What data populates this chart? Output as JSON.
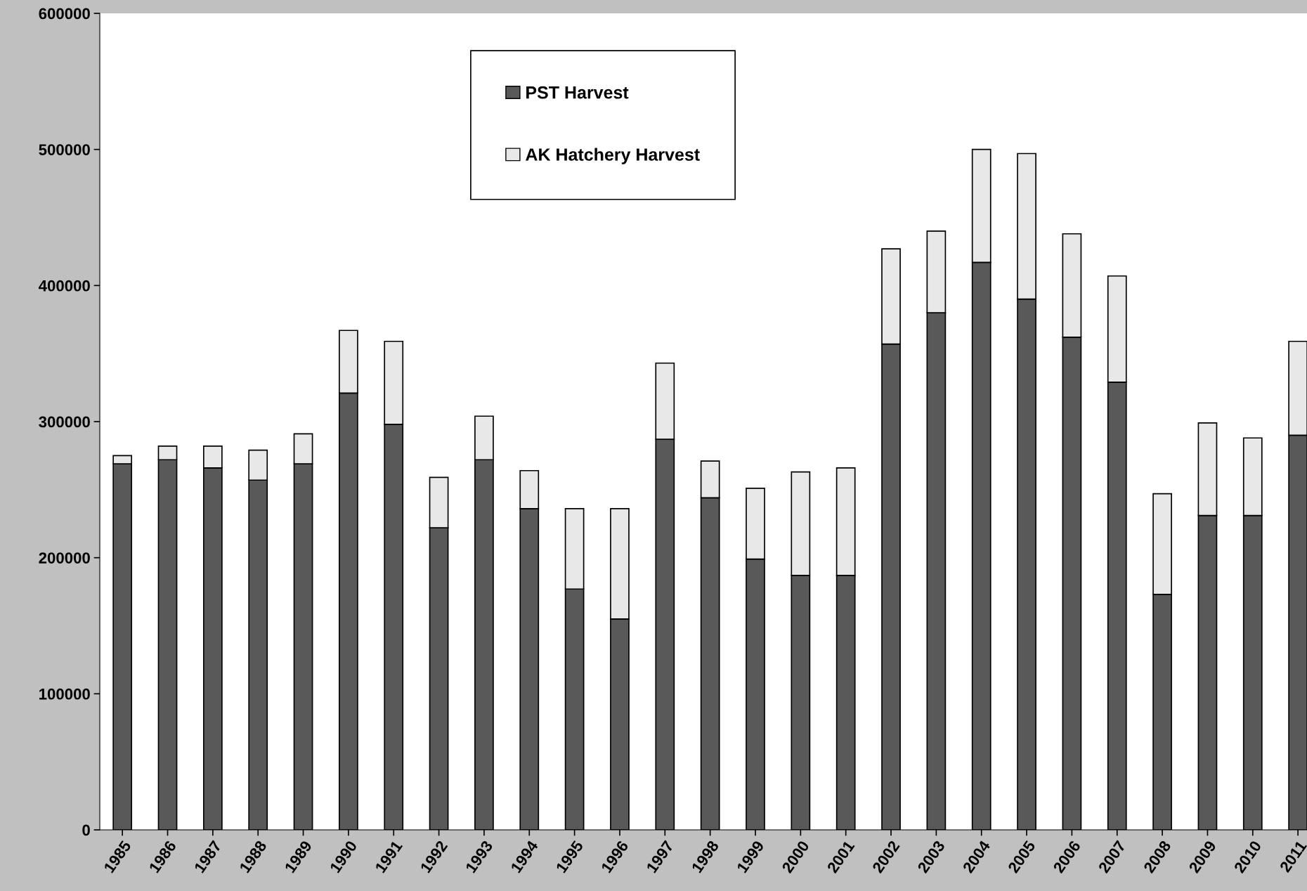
{
  "chart_data": {
    "type": "bar",
    "stacked": true,
    "categories": [
      "1985",
      "1986",
      "1987",
      "1988",
      "1989",
      "1990",
      "1991",
      "1992",
      "1993",
      "1994",
      "1995",
      "1996",
      "1997",
      "1998",
      "1999",
      "2000",
      "2001",
      "2002",
      "2003",
      "2004",
      "2005",
      "2006",
      "2007",
      "2008",
      "2009",
      "2010",
      "2011"
    ],
    "series": [
      {
        "name": "PST Harvest",
        "color": "#595959",
        "values": [
          269000,
          272000,
          266000,
          257000,
          269000,
          321000,
          298000,
          222000,
          272000,
          236000,
          177000,
          155000,
          287000,
          244000,
          199000,
          187000,
          187000,
          357000,
          380000,
          417000,
          390000,
          362000,
          329000,
          173000,
          231000,
          231000,
          290000
        ]
      },
      {
        "name": "AK Hatchery Harvest",
        "color": "#e8e8e8",
        "values": [
          6000,
          10000,
          16000,
          22000,
          22000,
          46000,
          61000,
          37000,
          32000,
          28000,
          59000,
          81000,
          56000,
          27000,
          52000,
          76000,
          79000,
          70000,
          60000,
          83000,
          107000,
          76000,
          78000,
          74000,
          68000,
          57000,
          69000
        ]
      }
    ],
    "ylim": [
      0,
      600000
    ],
    "yticks": [
      0,
      100000,
      200000,
      300000,
      400000,
      500000,
      600000
    ],
    "legend": "top",
    "grid": false
  }
}
